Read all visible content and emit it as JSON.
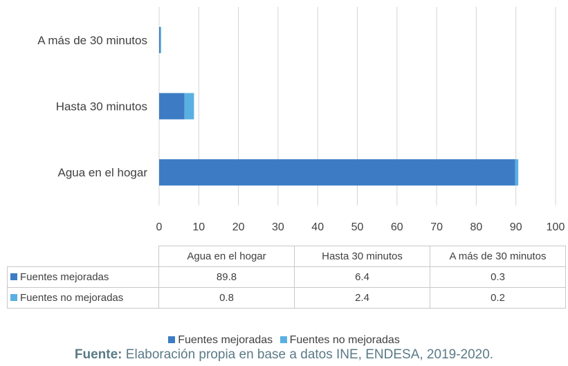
{
  "chart_data": {
    "type": "bar",
    "orientation": "horizontal",
    "stacked": true,
    "categories": [
      "Agua en el hogar",
      "Hasta 30 minutos",
      "A más de 30 minutos"
    ],
    "series": [
      {
        "name": "Fuentes mejoradas",
        "values": [
          89.8,
          6.4,
          0.3
        ],
        "color": "#3d7cc4"
      },
      {
        "name": "Fuentes no mejoradas",
        "values": [
          0.8,
          2.4,
          0.2
        ],
        "color": "#5ab0e2"
      }
    ],
    "xlim": [
      0,
      100
    ],
    "xticks": [
      "0",
      "10",
      "20",
      "30",
      "40",
      "50",
      "60",
      "70",
      "80",
      "90",
      "100"
    ],
    "grid": "vertical",
    "legend": "bottom",
    "data_table": true
  },
  "table": {
    "headers": [
      "Agua en el hogar",
      "Hasta 30 minutos",
      "A más de 30 minutos"
    ],
    "rows": [
      {
        "label": "Fuentes mejoradas",
        "values": [
          "89.8",
          "6.4",
          "0.3"
        ]
      },
      {
        "label": "Fuentes no mejoradas",
        "values": [
          "0.8",
          "2.4",
          "0.2"
        ]
      }
    ]
  },
  "legend": {
    "items": [
      "Fuentes mejoradas",
      "Fuentes no mejoradas"
    ]
  },
  "source": {
    "label": "Fuente:",
    "text": " Elaboración propia en base a datos INE, ENDESA, 2019-2020."
  }
}
